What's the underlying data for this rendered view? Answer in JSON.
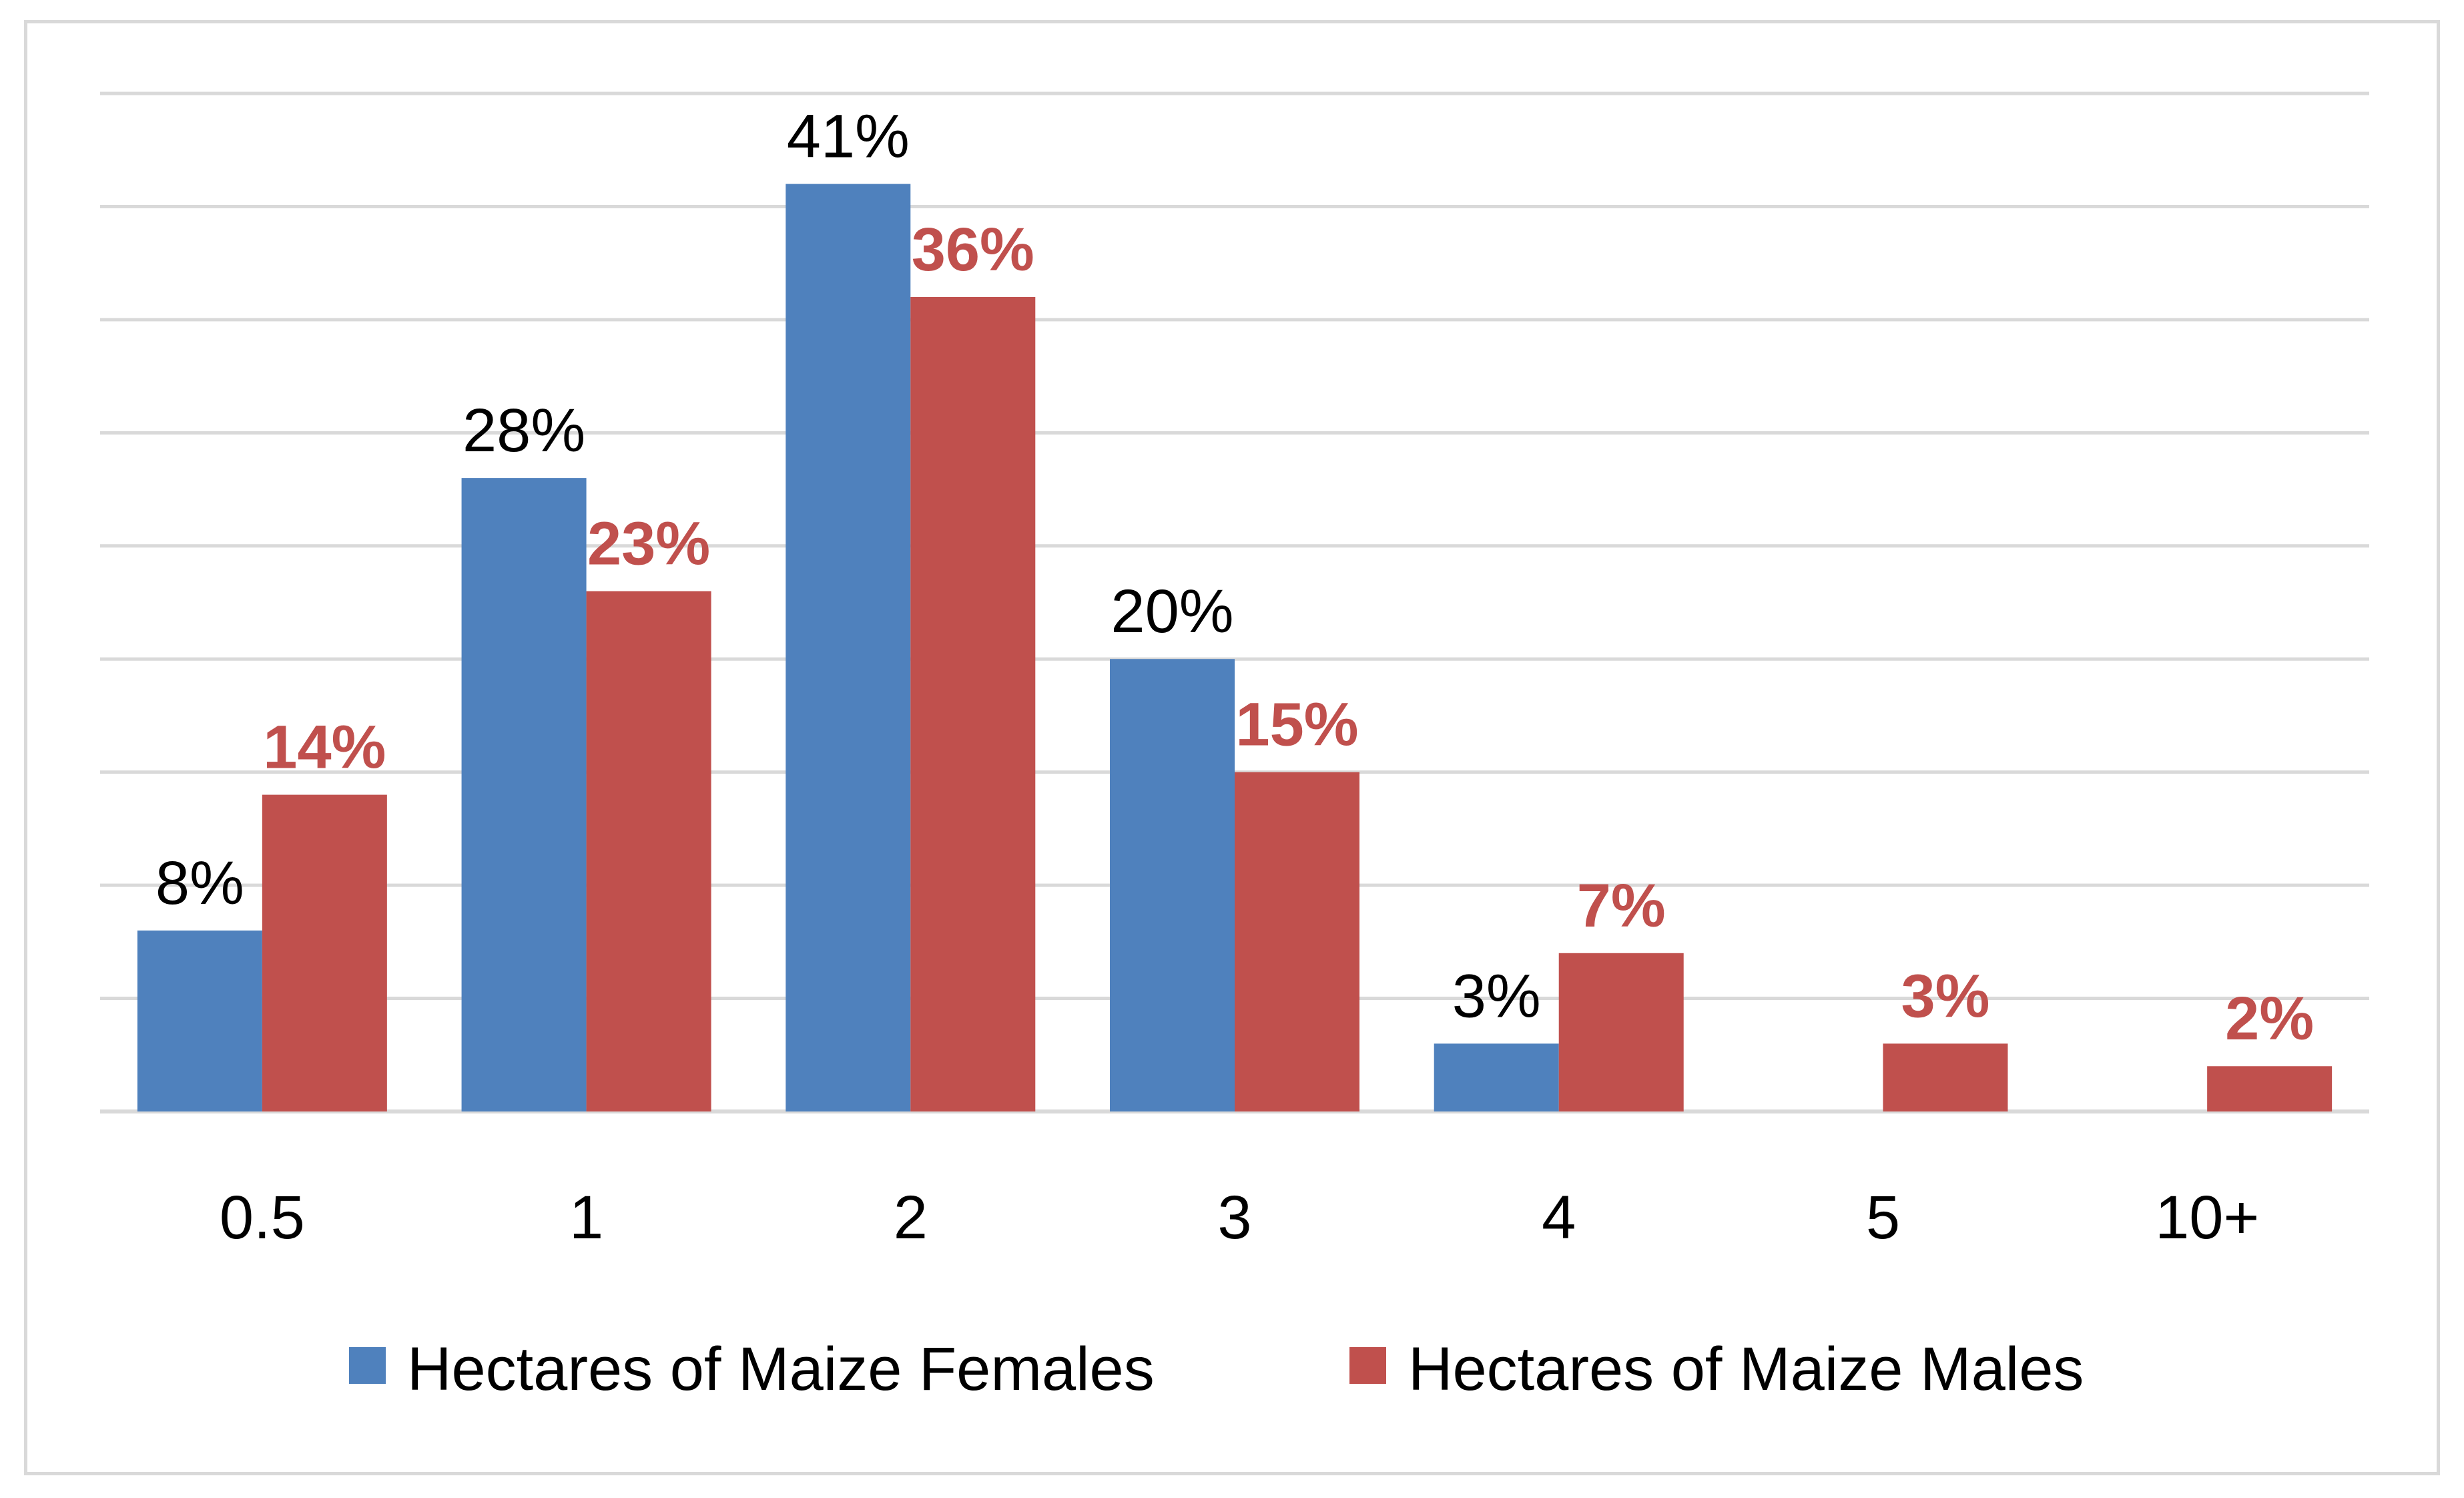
{
  "chart_data": {
    "type": "bar",
    "categories": [
      "0.5",
      "1",
      "2",
      "3",
      "4",
      "5",
      "10+"
    ],
    "series": [
      {
        "name": "Hectares of Maize Females",
        "color": "#4f81bd",
        "values": [
          8,
          28,
          41,
          20,
          3,
          null,
          null
        ],
        "labels": [
          "8%",
          "28%",
          "41%",
          "20%",
          "3%",
          "",
          ""
        ]
      },
      {
        "name": "Hectares of Maize Males",
        "color": "#c0504d",
        "values": [
          14,
          23,
          36,
          15,
          7,
          3,
          2
        ],
        "labels": [
          "14%",
          "23%",
          "36%",
          "15%",
          "7%",
          "3%",
          "2%"
        ]
      }
    ],
    "title": "",
    "xlabel": "",
    "ylabel": "",
    "ylim": [
      0,
      45
    ],
    "grid": true,
    "legend_position": "bottom",
    "gridline_color": "#d9d9d9"
  }
}
